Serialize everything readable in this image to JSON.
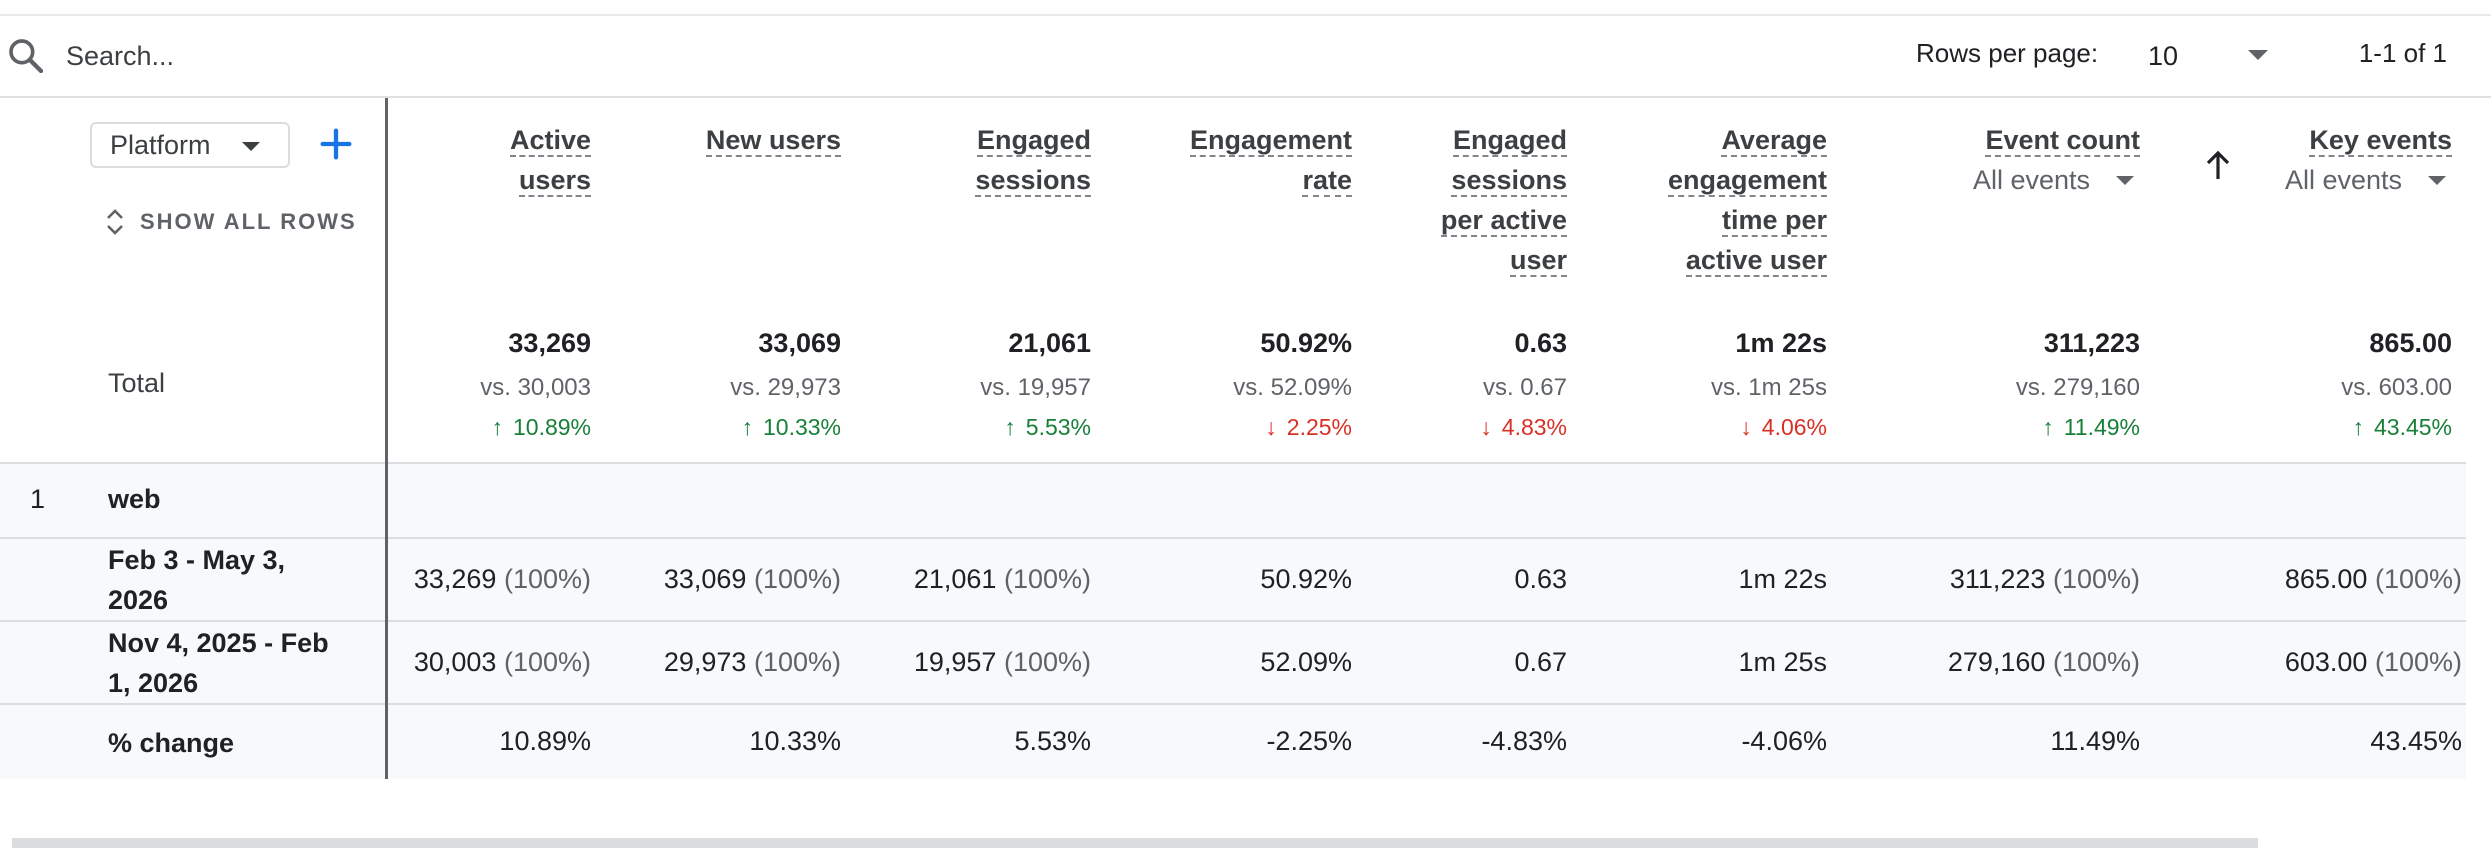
{
  "search": {
    "placeholder": "Search..."
  },
  "pager": {
    "rows_per_page_label": "Rows per page:",
    "rows_per_page_value": "10",
    "range": "1-1 of 1"
  },
  "dimension": {
    "chip_label": "Platform",
    "show_all_rows": "SHOW ALL ROWS"
  },
  "columns": [
    {
      "lines": [
        "Active",
        "users"
      ]
    },
    {
      "lines": [
        "New users"
      ]
    },
    {
      "lines": [
        "Engaged",
        "sessions"
      ]
    },
    {
      "lines": [
        "Engagement",
        "rate"
      ]
    },
    {
      "lines": [
        "Engaged",
        "sessions",
        "per active",
        "user"
      ]
    },
    {
      "lines": [
        "Average",
        "engagement",
        "time per",
        "active user"
      ]
    },
    {
      "lines": [
        "Event count"
      ],
      "filter": "All events"
    },
    {
      "lines": [
        "Key events"
      ],
      "filter": "All events",
      "sorted": "ascending"
    }
  ],
  "totals": {
    "label": "Total",
    "values": [
      {
        "main": "33,269",
        "vs": "vs. 30,003",
        "change": "10.89%",
        "direction": "up"
      },
      {
        "main": "33,069",
        "vs": "vs. 29,973",
        "change": "10.33%",
        "direction": "up"
      },
      {
        "main": "21,061",
        "vs": "vs. 19,957",
        "change": "5.53%",
        "direction": "up"
      },
      {
        "main": "50.92%",
        "vs": "vs. 52.09%",
        "change": "2.25%",
        "direction": "down"
      },
      {
        "main": "0.63",
        "vs": "vs. 0.67",
        "change": "4.83%",
        "direction": "down"
      },
      {
        "main": "1m 22s",
        "vs": "vs. 1m 25s",
        "change": "4.06%",
        "direction": "down"
      },
      {
        "main": "311,223",
        "vs": "vs. 279,160",
        "change": "11.49%",
        "direction": "up"
      },
      {
        "main": "865.00",
        "vs": "vs. 603.00",
        "change": "43.45%",
        "direction": "up"
      }
    ]
  },
  "rows": [
    {
      "index": "1",
      "name": "web",
      "periods": [
        {
          "label": "Feb 3 - May 3, 2026",
          "cells": [
            {
              "v": "33,269",
              "p": "(100%)"
            },
            {
              "v": "33,069",
              "p": "(100%)"
            },
            {
              "v": "21,061",
              "p": "(100%)"
            },
            {
              "v": "50.92%",
              "p": ""
            },
            {
              "v": "0.63",
              "p": ""
            },
            {
              "v": "1m 22s",
              "p": ""
            },
            {
              "v": "311,223",
              "p": "(100%)"
            },
            {
              "v": "865.00",
              "p": "(100%)"
            }
          ]
        },
        {
          "label": "Nov 4, 2025 - Feb 1, 2026",
          "cells": [
            {
              "v": "30,003",
              "p": "(100%)"
            },
            {
              "v": "29,973",
              "p": "(100%)"
            },
            {
              "v": "19,957",
              "p": "(100%)"
            },
            {
              "v": "52.09%",
              "p": ""
            },
            {
              "v": "0.67",
              "p": ""
            },
            {
              "v": "1m 25s",
              "p": ""
            },
            {
              "v": "279,160",
              "p": "(100%)"
            },
            {
              "v": "603.00",
              "p": "(100%)"
            }
          ]
        }
      ],
      "change": {
        "label": "% change",
        "cells": [
          "10.89%",
          "10.33%",
          "5.53%",
          "-2.25%",
          "-4.83%",
          "-4.06%",
          "11.49%",
          "43.45%"
        ]
      }
    }
  ],
  "colors": {
    "up": "#188038",
    "down": "#d93025",
    "accent": "#1a73e8"
  }
}
